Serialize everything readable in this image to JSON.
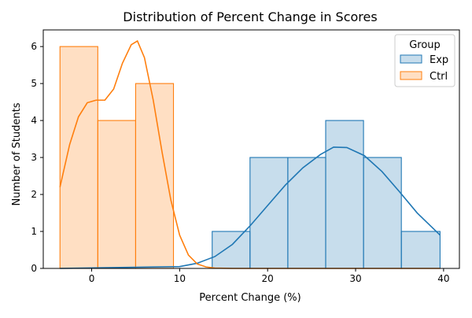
{
  "chart_data": {
    "type": "histogram",
    "title": "Distribution of Percent Change in Scores",
    "xlabel": "Percent Change (%)",
    "ylabel": "Number of Students",
    "xlim": [
      -5.5,
      41.8
    ],
    "ylim": [
      0,
      6.45
    ],
    "x_ticks": [
      0,
      10,
      20,
      30,
      40
    ],
    "y_ticks": [
      0,
      1,
      2,
      3,
      4,
      5,
      6
    ],
    "grid": false,
    "legend": {
      "title": "Group",
      "position": "top-right"
    },
    "series": [
      {
        "name": "Exp",
        "color": "#1f77b4",
        "fill": "rgba(31,119,180,0.25)",
        "bins": [
          {
            "start": 13.7,
            "end": 18.0,
            "count": 1
          },
          {
            "start": 18.0,
            "end": 22.3,
            "count": 3
          },
          {
            "start": 22.3,
            "end": 26.6,
            "count": 3
          },
          {
            "start": 26.6,
            "end": 30.9,
            "count": 4
          },
          {
            "start": 30.9,
            "end": 35.2,
            "count": 3
          },
          {
            "start": 35.2,
            "end": 39.6,
            "count": 1
          }
        ],
        "kde": [
          [
            -3.6,
            0.0
          ],
          [
            10,
            0.05
          ],
          [
            12,
            0.14
          ],
          [
            14,
            0.32
          ],
          [
            16,
            0.65
          ],
          [
            18,
            1.15
          ],
          [
            20,
            1.7
          ],
          [
            22,
            2.25
          ],
          [
            24,
            2.72
          ],
          [
            26,
            3.08
          ],
          [
            27.5,
            3.28
          ],
          [
            29,
            3.27
          ],
          [
            31,
            3.05
          ],
          [
            33,
            2.62
          ],
          [
            35,
            2.07
          ],
          [
            37,
            1.5
          ],
          [
            39.6,
            0.9
          ]
        ]
      },
      {
        "name": "Ctrl",
        "color": "#ff7f0e",
        "fill": "rgba(255,127,14,0.25)",
        "bins": [
          {
            "start": -3.6,
            "end": 0.7,
            "count": 6
          },
          {
            "start": 0.7,
            "end": 5.0,
            "count": 4
          },
          {
            "start": 5.0,
            "end": 9.3,
            "count": 5
          }
        ],
        "kde": [
          [
            -3.6,
            2.2
          ],
          [
            -2.5,
            3.35
          ],
          [
            -1.5,
            4.1
          ],
          [
            -0.5,
            4.48
          ],
          [
            0.5,
            4.55
          ],
          [
            1.5,
            4.55
          ],
          [
            2.5,
            4.85
          ],
          [
            3.5,
            5.55
          ],
          [
            4.5,
            6.05
          ],
          [
            5.2,
            6.15
          ],
          [
            6.0,
            5.7
          ],
          [
            7.0,
            4.55
          ],
          [
            8.0,
            3.15
          ],
          [
            9.0,
            1.85
          ],
          [
            10.0,
            0.9
          ],
          [
            11.0,
            0.36
          ],
          [
            12.0,
            0.12
          ],
          [
            13.0,
            0.04
          ],
          [
            14.0,
            0.01
          ],
          [
            16.0,
            0.0
          ],
          [
            39.6,
            0.0
          ]
        ]
      }
    ]
  }
}
